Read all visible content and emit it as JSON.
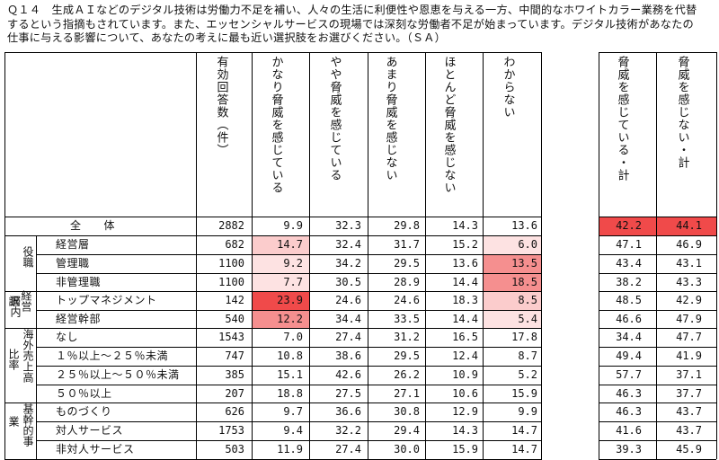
{
  "question": {
    "line1": "Ｑ１４　生成ＡＩなどのデジタル技術は労働力不足を補い、人々の生活に利便性や恩恵を与える一方、中間的なホワイトカラー業務を代替",
    "line2": "するという指摘もされています。また、エッセンシャルサービスの現場では深刻な労働者不足が始まっています。デジタル技術があなたの",
    "line3": "仕事に与える影響について、あなたの考えに最も近い選択肢をお選びください。（ＳＡ）"
  },
  "headers": {
    "n": "有効回答数（件）",
    "c1": "かなり脅威を感じている",
    "c2": "やや脅威を感じている",
    "c3": "あまり脅威を感じない",
    "c4": "ほとんど脅威を感じない",
    "c5": "わからない",
    "s1": "脅威を感じている・計",
    "s2": "脅威を感じない・計"
  },
  "groups": {
    "yakushoku": "役職",
    "uchiwake": "訳",
    "keiei": "経営層内",
    "kaigai": "海外売上高比率",
    "kaigai_side": "比率",
    "kaigai_main": "海外売上高",
    "kigyo": "基幹的事業",
    "kigyo_side": "業",
    "kigyo_main": "基幹的事"
  },
  "rows": [
    {
      "label": "全　　体",
      "n": "2882",
      "v": [
        "9.9",
        "32.3",
        "29.8",
        "14.3",
        "13.6"
      ],
      "s": [
        "42.2",
        "44.1"
      ]
    },
    {
      "label": "経営層",
      "n": "682",
      "v": [
        "14.7",
        "32.4",
        "31.7",
        "15.2",
        "6.0"
      ],
      "s": [
        "47.1",
        "46.9"
      ]
    },
    {
      "label": "管理職",
      "n": "1100",
      "v": [
        "9.2",
        "34.2",
        "29.5",
        "13.6",
        "13.5"
      ],
      "s": [
        "43.4",
        "43.1"
      ]
    },
    {
      "label": "非管理職",
      "n": "1100",
      "v": [
        "7.7",
        "30.5",
        "28.9",
        "14.4",
        "18.5"
      ],
      "s": [
        "38.2",
        "43.3"
      ]
    },
    {
      "label": "トップマネジメント",
      "n": "142",
      "v": [
        "23.9",
        "24.6",
        "24.6",
        "18.3",
        "8.5"
      ],
      "s": [
        "48.5",
        "42.9"
      ]
    },
    {
      "label": "経営幹部",
      "n": "540",
      "v": [
        "12.2",
        "34.4",
        "33.5",
        "14.4",
        "5.4"
      ],
      "s": [
        "46.6",
        "47.9"
      ]
    },
    {
      "label": "なし",
      "n": "1543",
      "v": [
        "7.0",
        "27.4",
        "31.2",
        "16.5",
        "17.8"
      ],
      "s": [
        "34.4",
        "47.7"
      ]
    },
    {
      "label": "１％以上～２５％未満",
      "n": "747",
      "v": [
        "10.8",
        "38.6",
        "29.5",
        "12.4",
        "8.7"
      ],
      "s": [
        "49.4",
        "41.9"
      ]
    },
    {
      "label": "２５％以上～５０％未満",
      "n": "385",
      "v": [
        "15.1",
        "42.6",
        "26.2",
        "10.9",
        "5.2"
      ],
      "s": [
        "57.7",
        "37.1"
      ]
    },
    {
      "label": "５０％以上",
      "n": "207",
      "v": [
        "18.8",
        "27.5",
        "27.1",
        "10.6",
        "15.9"
      ],
      "s": [
        "46.3",
        "37.7"
      ]
    },
    {
      "label": "ものづくり",
      "n": "626",
      "v": [
        "9.7",
        "36.6",
        "30.8",
        "12.9",
        "9.9"
      ],
      "s": [
        "46.3",
        "43.7"
      ]
    },
    {
      "label": "対人サービス",
      "n": "1753",
      "v": [
        "9.4",
        "32.2",
        "29.4",
        "14.3",
        "14.7"
      ],
      "s": [
        "41.6",
        "43.7"
      ]
    },
    {
      "label": "非対人サービス",
      "n": "503",
      "v": [
        "11.9",
        "27.4",
        "30.0",
        "15.9",
        "14.7"
      ],
      "s": [
        "39.3",
        "45.9"
      ]
    }
  ],
  "colors": {
    "strong": "#f04a4a",
    "medium": "#f58f8f",
    "light": "#fbcccc",
    "pale": "#fde2e2"
  }
}
